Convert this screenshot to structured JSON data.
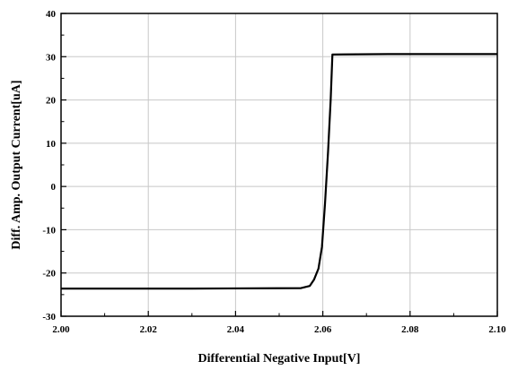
{
  "chart_data": {
    "type": "line",
    "xlabel": "Differential Negative Input[V]",
    "ylabel": "Diff. Amp. Output Current[uA]",
    "xlim": [
      2.0,
      2.1
    ],
    "ylim": [
      -30,
      40
    ],
    "grid": true,
    "x_ticks": [
      "2.00",
      "2.02",
      "2.04",
      "2.06",
      "2.08",
      "2.10"
    ],
    "y_ticks": [
      "-30",
      "-20",
      "-10",
      "0",
      "10",
      "20",
      "30",
      "40"
    ],
    "series": [
      {
        "color": "#000000",
        "points": [
          [
            2.0,
            -23.6
          ],
          [
            2.03,
            -23.6
          ],
          [
            2.055,
            -23.5
          ],
          [
            2.057,
            -23.0
          ],
          [
            2.058,
            -21.5
          ],
          [
            2.059,
            -19.0
          ],
          [
            2.0598,
            -14.0
          ],
          [
            2.0605,
            -4.0
          ],
          [
            2.0612,
            8.0
          ],
          [
            2.0618,
            20.0
          ],
          [
            2.0622,
            30.5
          ],
          [
            2.075,
            30.6
          ],
          [
            2.1,
            30.6
          ]
        ]
      }
    ]
  }
}
